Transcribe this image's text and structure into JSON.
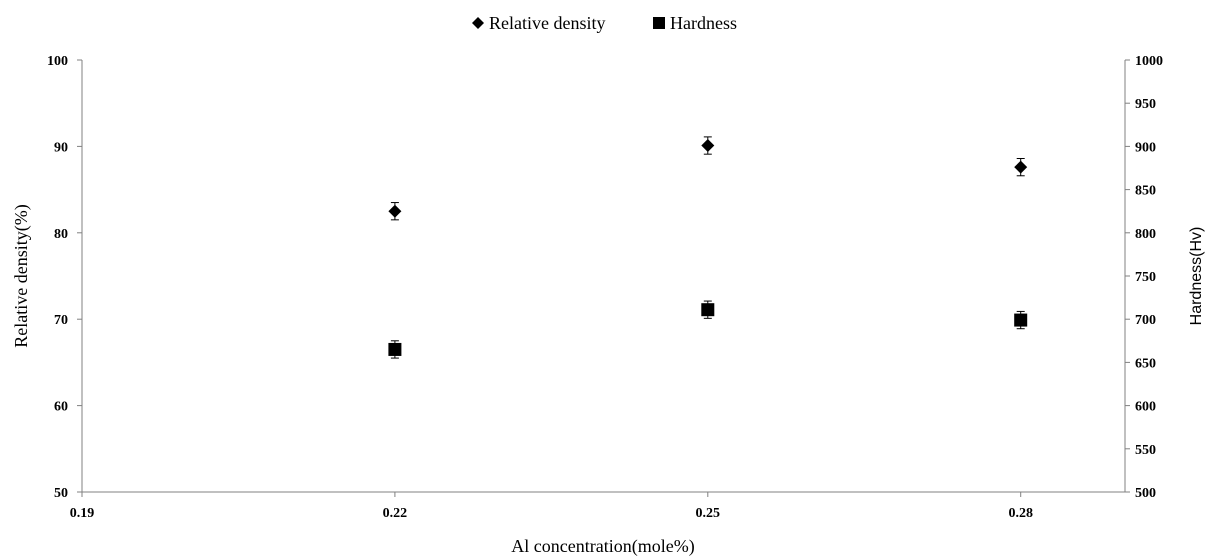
{
  "chart_data": {
    "type": "scatter",
    "title": "",
    "xlabel": "Al concentration(mole%)",
    "ylabel": "Relative density(%)",
    "y2label": "Hardness(Hv)",
    "xlim": [
      0.19,
      0.29
    ],
    "ylim": [
      50,
      100
    ],
    "y2lim": [
      500,
      1000
    ],
    "x_ticks": [
      "0.19",
      "0.22",
      "0.25",
      "0.28"
    ],
    "y_ticks": [
      "50",
      "60",
      "70",
      "80",
      "90",
      "100"
    ],
    "y2_ticks": [
      "500",
      "550",
      "600",
      "650",
      "700",
      "750",
      "800",
      "850",
      "900",
      "950",
      "1000"
    ],
    "grid": false,
    "legend_position": "top-center",
    "series": [
      {
        "name": "Relative density",
        "axis": "left",
        "marker": "diamond",
        "color": "#000000",
        "x": [
          0.22,
          0.25,
          0.28
        ],
        "y": [
          82.5,
          90.1,
          87.6
        ],
        "error": [
          1.0,
          1.0,
          1.0
        ]
      },
      {
        "name": "Hardness",
        "axis": "right",
        "marker": "square",
        "color": "#000000",
        "x": [
          0.22,
          0.25,
          0.28
        ],
        "y": [
          665,
          711,
          699
        ],
        "error": [
          10,
          10,
          10
        ]
      }
    ]
  }
}
